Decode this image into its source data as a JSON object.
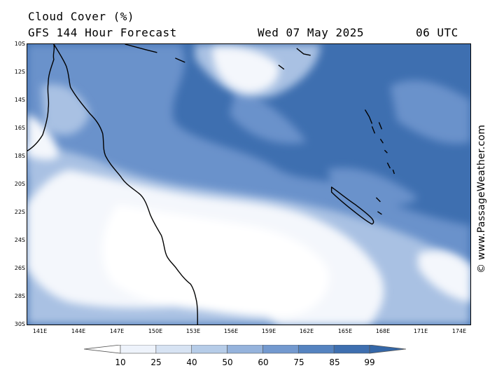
{
  "header": {
    "title": "Cloud Cover (%)",
    "subtitle": "GFS 144 Hour Forecast",
    "date": "Wed 07 May 2025",
    "time": "06 UTC"
  },
  "credit": "© www.PassageWeather.com",
  "map": {
    "lat_labels": [
      "10S",
      "12S",
      "14S",
      "16S",
      "18S",
      "20S",
      "22S",
      "24S",
      "26S",
      "28S",
      "30S"
    ],
    "lon_labels": [
      "141E",
      "144E",
      "147E",
      "150E",
      "153E",
      "156E",
      "159E",
      "162E",
      "165E",
      "168E",
      "171E",
      "174E"
    ],
    "lat_range": [
      -10,
      -30
    ],
    "lon_range": [
      140,
      175
    ]
  },
  "legend": {
    "labels": [
      "10",
      "25",
      "40",
      "50",
      "60",
      "75",
      "85",
      "99"
    ],
    "colors": [
      "#ffffff",
      "#eef3fb",
      "#d7e3f3",
      "#b6cce8",
      "#95b3dc",
      "#7399cf",
      "#5583c0",
      "#3e6fb0",
      "#3467a8"
    ]
  }
}
